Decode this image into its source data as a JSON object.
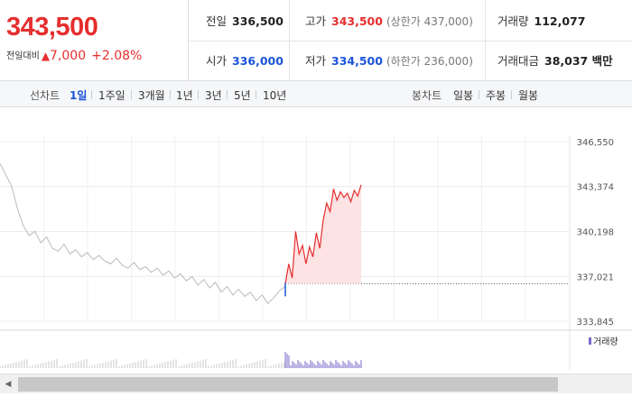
{
  "summary": {
    "current_price": "343,500",
    "change_label": "전일대비",
    "change_arrow": "▲",
    "change_value": "7,000",
    "change_pct": "+2.08%"
  },
  "quotes": {
    "prev_close": {
      "label": "전일",
      "value": "336,500"
    },
    "high": {
      "label": "고가",
      "value": "343,500",
      "limit": "(상한가 437,000)"
    },
    "volume": {
      "label": "거래량",
      "value": "112,077"
    },
    "open": {
      "label": "시가",
      "value": "336,000"
    },
    "low": {
      "label": "저가",
      "value": "334,500",
      "limit": "(하한가 236,000)"
    },
    "turnover": {
      "label": "거래대금",
      "value": "38,037 백만"
    }
  },
  "toolbar": {
    "line_chart_label": "선차트",
    "periods": [
      "1일",
      "1주일",
      "3개월",
      "1년",
      "3년",
      "5년",
      "10년"
    ],
    "active_period": "1일",
    "candle_label": "봉차트",
    "candles": [
      "일봉",
      "주봉",
      "월봉"
    ]
  },
  "colors": {
    "up": "#e62e2e",
    "down": "#1a54d9",
    "prev_line": "#bbbbbb",
    "volume": "#7a69c8",
    "up_fill": "#fde3e3"
  },
  "chart_data": {
    "type": "line",
    "title": "",
    "xlabel": "",
    "ylabel": "",
    "y_ticks": [
      "346,550",
      "343,374",
      "340,198",
      "337,021",
      "333,845"
    ],
    "y_tick_values": [
      346550,
      343374,
      340198,
      337021,
      333845
    ],
    "ylim": [
      333845,
      346550
    ],
    "reference_price": 336500,
    "prev_day_series": [
      345000,
      344200,
      343400,
      341800,
      340600,
      339900,
      340200,
      339400,
      339800,
      339000,
      338800,
      339300,
      338600,
      338900,
      338400,
      338700,
      338200,
      338500,
      338100,
      337900,
      338300,
      337800,
      337600,
      338000,
      337500,
      337700,
      337300,
      337600,
      337100,
      337400,
      336900,
      337200,
      336700,
      337000,
      336400,
      336800,
      336200,
      336600,
      335900,
      336300,
      335700,
      336100,
      335600,
      335900,
      335300,
      335700,
      335100,
      335500,
      336000,
      336300
    ],
    "today_series": [
      336500,
      337900,
      336900,
      340200,
      338600,
      339200,
      337900,
      339100,
      338400,
      340100,
      339000,
      341000,
      342200,
      341600,
      343200,
      342400,
      343000,
      342600,
      342900,
      342300,
      343100,
      342700,
      343500
    ],
    "volume_legend": "거래량",
    "grid": true
  },
  "scrollbar": {
    "left_arrow": "◀"
  }
}
